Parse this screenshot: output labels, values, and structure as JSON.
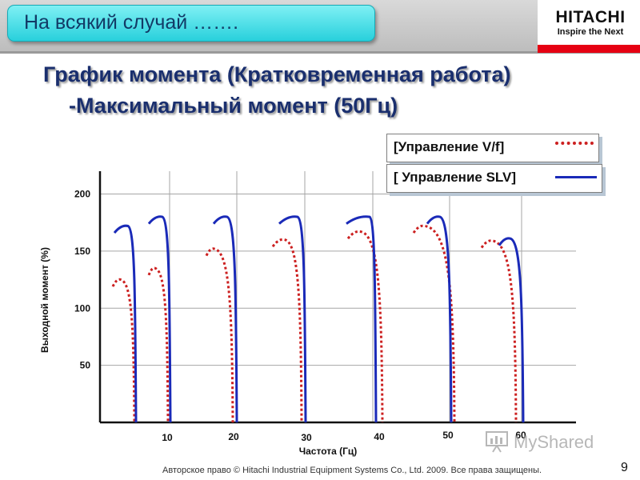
{
  "header": {
    "banner_text": "На всякий случай …….",
    "logo_brand": "HITACHI",
    "logo_tagline": "Inspire the Next"
  },
  "title_line1": "График момента  (Кратковременная работа)",
  "title_line2": "-Максимальный момент (50Гц)",
  "legend": {
    "vf_label": "[Управление V/f]",
    "slv_label": "[ Управление SLV]"
  },
  "colors": {
    "vf": "#cc2020",
    "slv": "#1a2ab8",
    "banner": "#28d0dc",
    "brand_red": "#e60012"
  },
  "chart_data": {
    "type": "line",
    "title": "",
    "xlabel": "Частота (Гц)",
    "ylabel": "Выходной момент (%)",
    "ylim": [
      0,
      220
    ],
    "y_ticks": [
      50,
      100,
      150,
      200
    ],
    "x_tick_labels": [
      "10",
      "20",
      "30",
      "40",
      "50",
      "60"
    ],
    "grid": true,
    "series": [
      {
        "name": "[Управление V/f]",
        "style": "dotted",
        "curves": [
          {
            "x_tick": "10",
            "peak": 125
          },
          {
            "x_tick": "10",
            "peak": 135
          },
          {
            "x_tick": "20",
            "peak": 152
          },
          {
            "x_tick": "30",
            "peak": 160
          },
          {
            "x_tick": "40",
            "peak": 167
          },
          {
            "x_tick": "50",
            "peak": 172
          },
          {
            "x_tick": "60",
            "peak": 159
          }
        ]
      },
      {
        "name": "[ Управление SLV]",
        "style": "solid",
        "curves": [
          {
            "x_tick": "10",
            "peak": 172
          },
          {
            "x_tick": "10",
            "peak": 180
          },
          {
            "x_tick": "20",
            "peak": 180
          },
          {
            "x_tick": "30",
            "peak": 180
          },
          {
            "x_tick": "40",
            "peak": 180
          },
          {
            "x_tick": "50",
            "peak": 180
          },
          {
            "x_tick": "60",
            "peak": 161
          }
        ]
      }
    ]
  },
  "watermark": "MyShared",
  "footer": {
    "copyright": "Авторское право © Hitachi Industrial Equipment Systems Co., Ltd. 2009. Все права защищены.",
    "page_number": "9"
  }
}
